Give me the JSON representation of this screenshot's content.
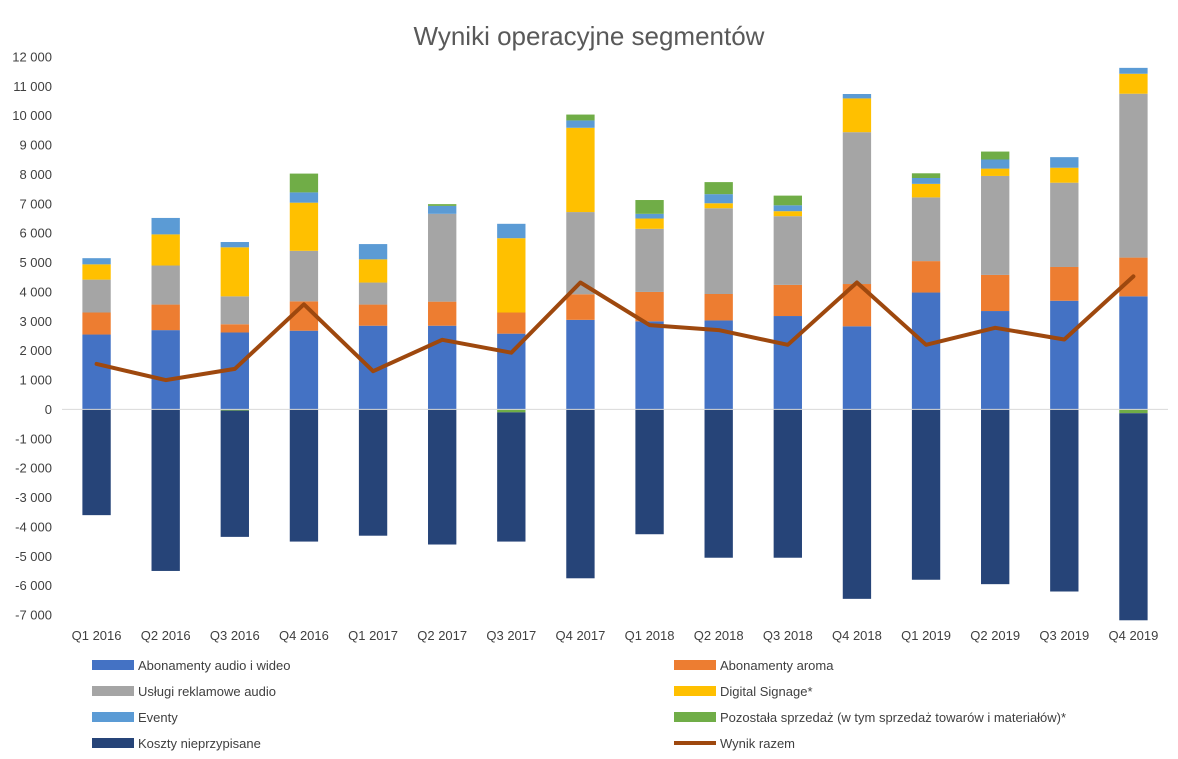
{
  "chart_data": {
    "type": "bar",
    "stacked": true,
    "title": "Wyniki operacyjne segmentów",
    "xlabel": "",
    "ylabel": "",
    "ylim": [
      -7000,
      12000
    ],
    "y_ticks": [
      12000,
      11000,
      10000,
      9000,
      8000,
      7000,
      6000,
      5000,
      4000,
      3000,
      2000,
      1000,
      0,
      -1000,
      -2000,
      -3000,
      -4000,
      -5000,
      -6000,
      -7000
    ],
    "y_tick_labels": [
      "12 000",
      "11 000",
      "10 000",
      "9 000",
      "8 000",
      "7 000",
      "6 000",
      "5 000",
      "4 000",
      "3 000",
      "2 000",
      "1 000",
      "0",
      "-1 000",
      "-2 000",
      "-3 000",
      "-4 000",
      "-5 000",
      "-6 000",
      "-7 000"
    ],
    "grid": false,
    "legend_position": "bottom",
    "categories": [
      "Q1 2016",
      "Q2 2016",
      "Q3 2016",
      "Q4 2016",
      "Q1 2017",
      "Q2 2017",
      "Q3 2017",
      "Q4 2017",
      "Q1 2018",
      "Q2 2018",
      "Q3 2018",
      "Q4 2018",
      "Q1 2019",
      "Q2 2019",
      "Q3 2019",
      "Q4 2019"
    ],
    "series": [
      {
        "name": "Abonamenty audio i wideo",
        "color": "#4472C4",
        "kind": "bar",
        "values": [
          2550,
          2700,
          2620,
          2680,
          2850,
          2850,
          2580,
          3050,
          3000,
          3030,
          3180,
          2830,
          3980,
          3350,
          3700,
          3850
        ]
      },
      {
        "name": "Abonamenty aroma",
        "color": "#ED7D31",
        "kind": "bar",
        "values": [
          750,
          870,
          280,
          1000,
          720,
          820,
          720,
          870,
          1000,
          900,
          1060,
          1440,
          1070,
          1230,
          1150,
          1320
        ]
      },
      {
        "name": "Usługi reklamowe audio",
        "color": "#A5A5A5",
        "kind": "bar",
        "values": [
          1120,
          1330,
          950,
          1720,
          750,
          2990,
          0,
          2800,
          2150,
          2920,
          2340,
          5170,
          2170,
          3370,
          2870,
          5580
        ]
      },
      {
        "name": "Digital Signage*",
        "color": "#FFC000",
        "kind": "bar",
        "values": [
          520,
          1060,
          1670,
          1640,
          790,
          0,
          2530,
          2870,
          350,
          170,
          170,
          1150,
          460,
          250,
          510,
          680
        ]
      },
      {
        "name": "Eventy",
        "color": "#5B9BD5",
        "kind": "bar",
        "values": [
          210,
          560,
          180,
          350,
          520,
          270,
          490,
          250,
          160,
          310,
          200,
          150,
          200,
          310,
          360,
          200
        ]
      },
      {
        "name": "Pozostała sprzedaż (w tym sprzedaż towarów i materiałów)*",
        "color": "#70AD47",
        "kind": "bar",
        "values": [
          0,
          0,
          -40,
          640,
          0,
          60,
          -100,
          200,
          470,
          410,
          330,
          0,
          160,
          270,
          0,
          -130
        ]
      },
      {
        "name": "Koszty nieprzypisane",
        "color": "#264478",
        "kind": "bar",
        "values": [
          -3600,
          -5500,
          -4300,
          -4500,
          -4300,
          -4600,
          -4400,
          -5750,
          -4250,
          -5050,
          -5050,
          -6450,
          -5800,
          -5950,
          -6200,
          -7050
        ]
      },
      {
        "name": "Wynik razem",
        "color": "#9E480E",
        "kind": "line",
        "values": [
          1550,
          1000,
          1380,
          3580,
          1300,
          2370,
          1930,
          4320,
          2870,
          2700,
          2200,
          4320,
          2200,
          2780,
          2380,
          4530
        ]
      }
    ]
  }
}
